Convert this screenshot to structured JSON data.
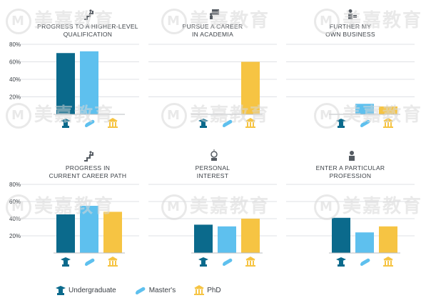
{
  "watermark": "美嘉教育",
  "colors": {
    "undergraduate": "#0b6a8c",
    "masters": "#5ec0ee",
    "phd": "#f6c443",
    "grid": "#dfe1e5",
    "text": "#3a3f45"
  },
  "legend": {
    "items": [
      {
        "label": "Undergraduate",
        "icon": "graduation-cap-icon",
        "color": "#0b6a8c"
      },
      {
        "label": "Master's",
        "icon": "diploma-scroll-icon",
        "color": "#5ec0ee"
      },
      {
        "label": "PhD",
        "icon": "pillared-building-icon",
        "color": "#f6c443"
      }
    ]
  },
  "chart_data": [
    {
      "type": "bar",
      "title": "PROGRESS TO A HIGHER-LEVEL QUALIFICATION",
      "title_lines": [
        "PROGRESS TO A HIGHER-LEVEL",
        "QUALIFICATION"
      ],
      "icon": "climbing-stairs-icon",
      "categories": [
        "Undergraduate",
        "Master's",
        "PhD"
      ],
      "values": [
        70,
        72,
        0
      ],
      "yticks": [
        "80%",
        "60%",
        "40%",
        "20%"
      ],
      "ylim": [
        0,
        80
      ]
    },
    {
      "type": "bar",
      "title": "PURSUE A CAREER IN ACADEMIA",
      "title_lines": [
        "PURSUE A CAREER",
        "IN ACADEMIA"
      ],
      "icon": "lecturer-board-icon",
      "categories": [
        "Undergraduate",
        "Master's",
        "PhD"
      ],
      "values": [
        0,
        0,
        60
      ],
      "yticks": [],
      "ylim": [
        0,
        80
      ]
    },
    {
      "type": "bar",
      "title": "FURTHER MY OWN BUSINESS",
      "title_lines": [
        "FURTHER MY",
        "OWN BUSINESS"
      ],
      "icon": "businessperson-icon",
      "categories": [
        "Undergraduate",
        "Master's",
        "PhD"
      ],
      "values": [
        0,
        12,
        9
      ],
      "yticks": [],
      "ylim": [
        0,
        80
      ]
    },
    {
      "type": "bar",
      "title": "PROGRESS IN CURRENT CAREER PATH",
      "title_lines": [
        "PROGRESS IN",
        "CURRENT CAREER PATH"
      ],
      "icon": "climbing-stairs-icon",
      "categories": [
        "Undergraduate",
        "Master's",
        "PhD"
      ],
      "values": [
        45,
        55,
        48
      ],
      "yticks": [
        "80%",
        "60%",
        "40%",
        "20%"
      ],
      "ylim": [
        0,
        80
      ]
    },
    {
      "type": "bar",
      "title": "PERSONAL INTEREST",
      "title_lines": [
        "PERSONAL",
        "INTEREST"
      ],
      "icon": "lightbulb-head-icon",
      "categories": [
        "Undergraduate",
        "Master's",
        "PhD"
      ],
      "values": [
        33,
        31,
        40
      ],
      "yticks": [],
      "ylim": [
        0,
        80
      ]
    },
    {
      "type": "bar",
      "title": "ENTER A PARTICULAR PROFESSION",
      "title_lines": [
        "ENTER A PARTICULAR",
        "PROFESSION"
      ],
      "icon": "professional-person-icon",
      "categories": [
        "Undergraduate",
        "Master's",
        "PhD"
      ],
      "values": [
        41,
        24,
        31
      ],
      "yticks": [],
      "ylim": [
        0,
        80
      ]
    }
  ]
}
